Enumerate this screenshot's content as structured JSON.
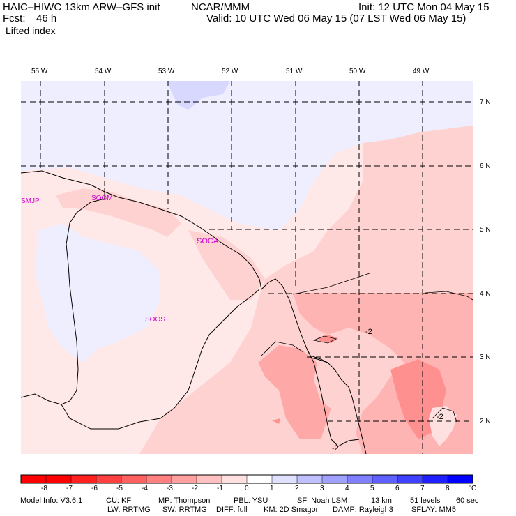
{
  "header": {
    "model": "HAIC–HIWC 13km ARW–GFS init",
    "org": "NCAR/MMM",
    "init": "Init: 12 UTC Mon 04 May 15",
    "fcst_label": "Fcst:",
    "fcst_value": "46 h",
    "valid": "Valid: 10 UTC Wed 06 May 15 (07 LST Wed 06 May 15)",
    "field": "Lifted index"
  },
  "lon_labels": [
    "55 W",
    "54 W",
    "53 W",
    "52 W",
    "51 W",
    "50 W",
    "49 W"
  ],
  "lat_labels": [
    "7 N",
    "6 N",
    "5 N",
    "4 N",
    "3 N",
    "2 N"
  ],
  "stations": [
    "SMJP",
    "SOGM",
    "SOCA",
    "SOOS"
  ],
  "contour_labels": [
    "-2",
    "-2",
    "-2"
  ],
  "colorbar": {
    "ticks": [
      "-8",
      "-7",
      "-6",
      "-5",
      "-4",
      "-3",
      "-2",
      "-1",
      "0",
      "1",
      "2",
      "3",
      "4",
      "5",
      "6",
      "7",
      "8"
    ],
    "unit": "°C",
    "colors": [
      "#ff0000",
      "#ff2020",
      "#ff4040",
      "#ff6060",
      "#ff8080",
      "#ffa0a0",
      "#ffc0c0",
      "#ffe0e0",
      "#ffffff",
      "#e0e0ff",
      "#c0c0ff",
      "#a0a0ff",
      "#8080ff",
      "#6060ff",
      "#4040ff",
      "#2020ff",
      "#0000ff"
    ]
  },
  "footer": {
    "line1": [
      "Model Info: V3.6.1",
      "CU: KF",
      "MP: Thompson",
      "PBL: YSU",
      "SF: Noah LSM",
      "13 km",
      "51 levels",
      "60 sec"
    ],
    "line2": [
      "LW: RRTMG",
      "SW: RRTMG",
      "DIFF: full",
      "KM: 2D Smagor",
      "DAMP: Rayleigh3",
      "SFLAY: MM5"
    ]
  }
}
